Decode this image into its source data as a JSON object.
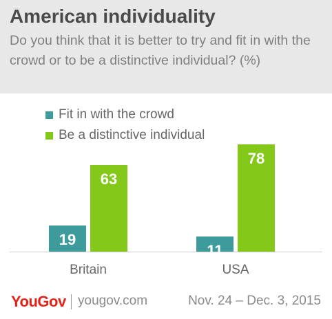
{
  "header": {
    "title": "American individuality",
    "subtitle": "Do you think that it is better to try and fit in with the crowd or to be a distinctive individual? (%)"
  },
  "colors": {
    "header_bg": "#e8e8e8",
    "fit_in": "#3d9b9b",
    "distinctive": "#84c91a",
    "logo": "#e2231a"
  },
  "chart_data": {
    "type": "bar",
    "title": "American individuality",
    "categories": [
      "Britain",
      "USA"
    ],
    "series": [
      {
        "name": "Fit in with the crowd",
        "color": "#3d9b9b",
        "values": [
          19,
          11
        ]
      },
      {
        "name": "Be a distinctive individual",
        "color": "#84c91a",
        "values": [
          63,
          78
        ]
      }
    ],
    "ylim": [
      0,
      80
    ],
    "grid": false,
    "data_labels": true,
    "legend_position": "top-left"
  },
  "footer": {
    "logo": "YouGov",
    "site": "yougov.com",
    "dates": "Nov. 24 – Dec. 3, 2015"
  }
}
